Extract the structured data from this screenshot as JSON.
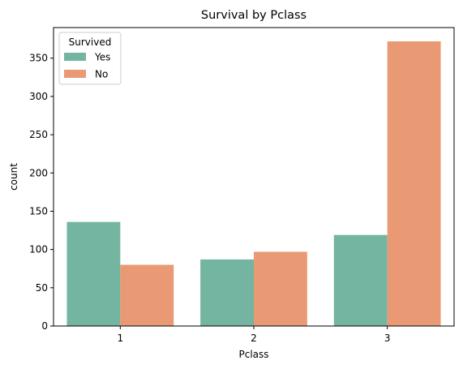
{
  "chart_data": {
    "type": "bar",
    "title": "Survival by Pclass",
    "xlabel": "Pclass",
    "ylabel": "count",
    "categories": [
      "1",
      "2",
      "3"
    ],
    "series": [
      {
        "name": "Yes",
        "values": [
          136,
          87,
          119
        ],
        "color": "#73b5a0"
      },
      {
        "name": "No",
        "values": [
          80,
          97,
          372
        ],
        "color": "#e99a74"
      }
    ],
    "ylim": [
      0,
      390
    ],
    "yticks": [
      0,
      50,
      100,
      150,
      200,
      250,
      300,
      350
    ],
    "legend": {
      "title": "Survived",
      "placement": "top-left"
    },
    "grid": false
  }
}
